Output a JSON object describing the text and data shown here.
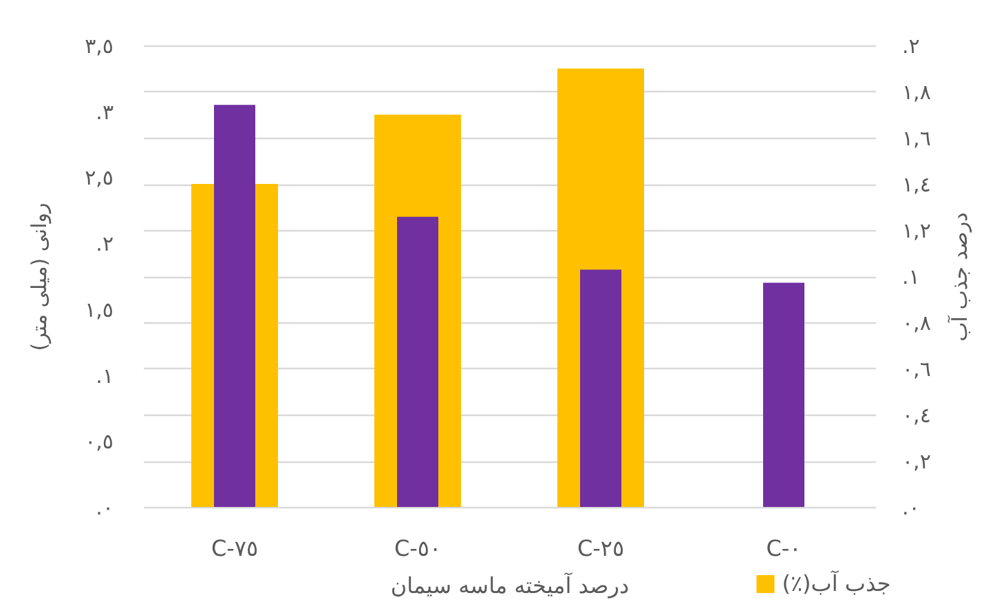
{
  "chart_data": {
    "type": "bar",
    "xlabel": "درصد آمیخته ماسه سیمان",
    "ylabel": "روانی (میلی متر)",
    "y2label": "درصد جذب آب",
    "categories": [
      "C-٧٥",
      "C-٥٠",
      "C-٢٥",
      "C-٠"
    ],
    "series": [
      {
        "name": "جذب آب(٪)",
        "color": "#ffc000",
        "axis": "y2",
        "values": [
          1.4,
          1.7,
          1.9,
          null
        ]
      },
      {
        "color": "#7030a0",
        "values": [
          3.05,
          2.2,
          1.8,
          1.7
        ]
      }
    ],
    "ylim": [
      0,
      3.5
    ],
    "yticks": [
      {
        "value": 0,
        "label": "٠."
      },
      {
        "value": 0.5,
        "label": "٠,٥"
      },
      {
        "value": 1,
        "label": "١."
      },
      {
        "value": 1.5,
        "label": "١,٥"
      },
      {
        "value": 2,
        "label": "٢."
      },
      {
        "value": 2.5,
        "label": "٢,٥"
      },
      {
        "value": 3,
        "label": "٣."
      },
      {
        "value": 3.5,
        "label": "٣,٥"
      }
    ],
    "y2lim": [
      0,
      2
    ],
    "y2ticks": [
      {
        "value": 0,
        "label": "٠."
      },
      {
        "value": 0.2,
        "label": "٠,٢"
      },
      {
        "value": 0.4,
        "label": "٠,٤"
      },
      {
        "value": 0.6,
        "label": "٠,٦"
      },
      {
        "value": 0.8,
        "label": "٠,٨"
      },
      {
        "value": 1,
        "label": "١."
      },
      {
        "value": 1.2,
        "label": "١,٢"
      },
      {
        "value": 1.4,
        "label": "١,٤"
      },
      {
        "value": 1.6,
        "label": "١,٦"
      },
      {
        "value": 1.8,
        "label": "١,٨"
      },
      {
        "value": 2,
        "label": "٢."
      }
    ],
    "grid": "y2",
    "legend": "bottom right"
  }
}
